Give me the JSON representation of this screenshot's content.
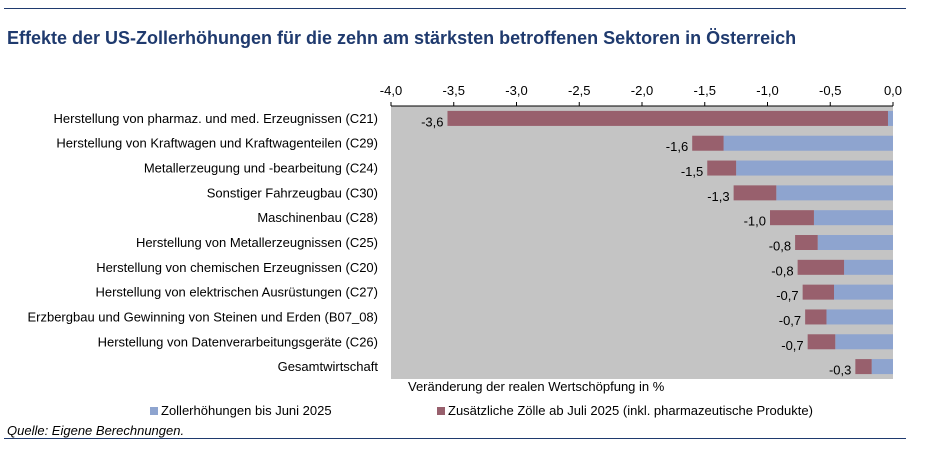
{
  "title": "Effekte der US-Zollerhöhungen für die zehn am stärksten betroffenen Sektoren in Österreich",
  "source": "Quelle: Eigene Berechnungen.",
  "colors": {
    "series1": "#8ea4cf",
    "series2": "#98606d",
    "plot_background": "#c4c4c4",
    "title": "#1f3a6e"
  },
  "chart_data": {
    "type": "bar",
    "orientation": "horizontal",
    "stacked": true,
    "xlabel": "Veränderung der realen Wertschöpfung in %",
    "xlim": [
      -4.0,
      0.0
    ],
    "x_ticks": [
      "-4,0",
      "-3,5",
      "-3,0",
      "-2,5",
      "-2,0",
      "-1,5",
      "-1,0",
      "-0,5",
      "0,0"
    ],
    "grid": false,
    "legend_position": "bottom",
    "categories": [
      "Herstellung von pharmaz. und med. Erzeugnissen (C21)",
      "Herstellung von Kraftwagen und Kraftwagenteilen (C29)",
      "Metallerzeugung und -bearbeitung (C24)",
      "Sonstiger Fahrzeugbau (C30)",
      "Maschinenbau (C28)",
      "Herstellung von Metallerzeugnissen (C25)",
      "Herstellung von chemischen Erzeugnissen (C20)",
      "Herstellung von elektrischen Ausrüstungen (C27)",
      "Erzbergbau und Gewinning von Steinen und Erden (B07_08)",
      "Herstellung von Datenverarbeitungsgeräte (C26)",
      "Gesamtwirtschaft"
    ],
    "series": [
      {
        "name": "Zollerhöhungen bis Juni 2025",
        "values": [
          -0.04,
          -1.35,
          -1.25,
          -0.93,
          -0.63,
          -0.6,
          -0.39,
          -0.47,
          -0.53,
          -0.46,
          -0.17
        ]
      },
      {
        "name": "Zusätzliche Zölle ab Juli 2025 (inkl. pharmazeutische Produkte)",
        "values": [
          -3.51,
          -0.25,
          -0.23,
          -0.34,
          -0.35,
          -0.18,
          -0.37,
          -0.25,
          -0.17,
          -0.22,
          -0.13
        ]
      }
    ],
    "data_labels": [
      "-3,6",
      "-1,6",
      "-1,5",
      "-1,3",
      "-1,0",
      "-0,8",
      "-0,8",
      "-0,7",
      "-0,7",
      "-0,7",
      "-0,3"
    ]
  }
}
